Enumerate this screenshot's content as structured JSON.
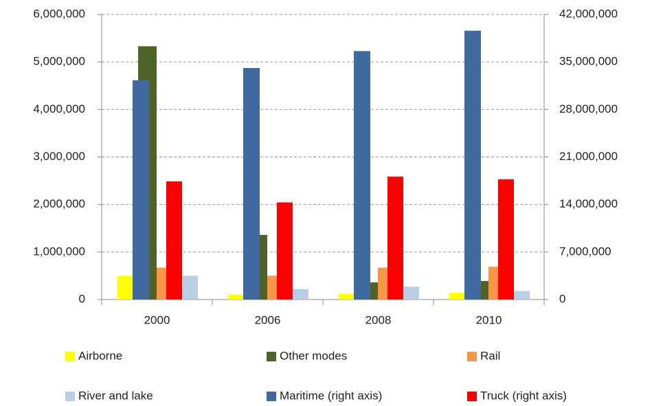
{
  "chart_data": {
    "type": "bar",
    "categories": [
      "2000",
      "2006",
      "2008",
      "2010"
    ],
    "series": [
      {
        "name": "Airborne",
        "color": "#ffff00",
        "values": [
          500000,
          100000,
          120000,
          140000
        ]
      },
      {
        "name": "Other modes",
        "color": "#4f6228",
        "values": [
          5330000,
          1360000,
          360000,
          390000
        ]
      },
      {
        "name": "Rail",
        "color": "#f79646",
        "values": [
          670000,
          500000,
          670000,
          690000
        ]
      },
      {
        "name": "River and lake",
        "color": "#b9cde5",
        "values": [
          500000,
          220000,
          270000,
          180000
        ]
      },
      {
        "name": "Maritime (right axis)",
        "color": "#4069a0",
        "axis": "y2",
        "values": [
          32300000,
          34100000,
          36600000,
          39600000
        ]
      },
      {
        "name": "Truck (right axis)",
        "color": "#ff0000",
        "axis": "y2",
        "values": [
          17400000,
          14300000,
          18100000,
          17700000
        ]
      }
    ],
    "ylim": [
      0,
      6000000
    ],
    "yticks": [
      0,
      {
        "value": 1000000,
        "label": "1,000,000"
      },
      {
        "value": 2000000,
        "label": "2,000,000"
      },
      {
        "value": 3000000,
        "label": "3,000,000"
      },
      {
        "value": 4000000,
        "label": "4,000,000"
      },
      {
        "value": 5000000,
        "label": "5,000,000"
      },
      {
        "value": 6000000,
        "label": "6,000,000"
      }
    ],
    "y2lim": [
      0,
      42000000
    ],
    "y2ticks": [
      0,
      {
        "value": 7000000,
        "label": "7,000,000"
      },
      {
        "value": 14000000,
        "label": "14,000,000"
      },
      {
        "value": 21000000,
        "label": "21,000,000"
      },
      {
        "value": 28000000,
        "label": "28,000,000"
      },
      {
        "value": 35000000,
        "label": "35,000,000"
      },
      {
        "value": 42000000,
        "label": "42,000,000"
      }
    ],
    "grid": true,
    "legend": "bottom"
  }
}
